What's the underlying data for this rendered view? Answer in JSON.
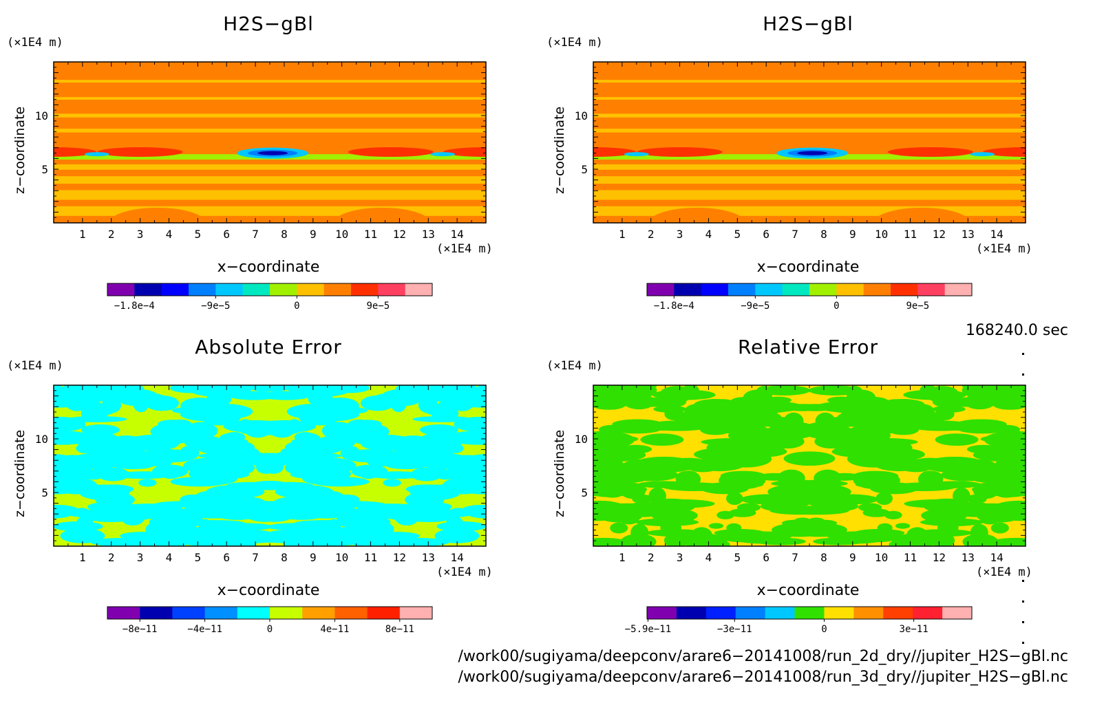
{
  "panels": [
    {
      "title": "H2S−gBl",
      "x_unit": "(×1E4 m)",
      "y_unit": "(×1E4 m)",
      "xlabel": "x−coordinate",
      "ylabel": "z−coordinate",
      "colorbar_labels": [
        "−1.8e−4",
        "−9e−5",
        "0",
        "9e−5"
      ]
    },
    {
      "title": "H2S−gBl",
      "x_unit": "(×1E4 m)",
      "y_unit": "(×1E4 m)",
      "xlabel": "x−coordinate",
      "ylabel": "z−coordinate",
      "colorbar_labels": [
        "−1.8e−4",
        "−9e−5",
        "0",
        "9e−5"
      ]
    },
    {
      "title": "Absolute Error",
      "x_unit": "(×1E4 m)",
      "y_unit": "(×1E4 m)",
      "xlabel": "x−coordinate",
      "ylabel": "z−coordinate",
      "colorbar_labels": [
        "−8e−11",
        "−4e−11",
        "0",
        "4e−11",
        "8e−11"
      ]
    },
    {
      "title": "Relative Error",
      "x_unit": "(×1E4 m)",
      "y_unit": "(×1E4 m)",
      "xlabel": "x−coordinate",
      "ylabel": "z−coordinate",
      "colorbar_labels": [
        "−5.9e−11",
        "−3e−11",
        "0",
        "3e−11"
      ]
    }
  ],
  "timestamp": "168240.0 sec",
  "footer": {
    "line1": "/work00/sugiyama/deepconv/arare6−20141008/run_2d_dry//jupiter_H2S−gBl.nc",
    "line2": "/work00/sugiyama/deepconv/arare6−20141008/run_3d_dry//jupiter_H2S−gBl.nc"
  },
  "chart_data": [
    {
      "type": "heatmap",
      "title": "H2S−gBl",
      "xlabel": "x−coordinate",
      "ylabel": "z−coordinate",
      "x_unit": "×1E4 m",
      "y_unit": "×1E4 m",
      "xlim": [
        0,
        15
      ],
      "ylim": [
        0,
        15
      ],
      "x_ticks": [
        1,
        2,
        3,
        4,
        5,
        6,
        7,
        8,
        9,
        10,
        11,
        12,
        13,
        14
      ],
      "y_ticks": [
        5,
        10
      ],
      "colorbar": {
        "tick_values": [
          -0.00018,
          -9e-05,
          0,
          9e-05
        ],
        "tick_labels": [
          "−1.8e−4",
          "−9e−5",
          "0",
          "9e−5"
        ],
        "colors": [
          "#8000b0",
          "#0000b0",
          "#0000ff",
          "#0080ff",
          "#00c8ff",
          "#00e8c0",
          "#a0f000",
          "#ffc000",
          "#ff8000",
          "#ff3000",
          "#ff4060",
          "#ffb0b0"
        ]
      },
      "features": [
        {
          "z": 6.5,
          "x": 7.6,
          "level": "minimum, about −2e−4"
        },
        {
          "z": 6.5,
          "x": 3.0,
          "level": "positive, about 6e−5"
        },
        {
          "z": 6.5,
          "x": 11.7,
          "level": "positive, about 6e−5"
        }
      ]
    },
    {
      "type": "heatmap",
      "title": "H2S−gBl",
      "xlabel": "x−coordinate",
      "ylabel": "z−coordinate",
      "x_unit": "×1E4 m",
      "y_unit": "×1E4 m",
      "xlim": [
        0,
        15
      ],
      "ylim": [
        0,
        15
      ],
      "x_ticks": [
        1,
        2,
        3,
        4,
        5,
        6,
        7,
        8,
        9,
        10,
        11,
        12,
        13,
        14
      ],
      "y_ticks": [
        5,
        10
      ],
      "colorbar": {
        "tick_values": [
          -0.00018,
          -9e-05,
          0,
          9e-05
        ],
        "tick_labels": [
          "−1.8e−4",
          "−9e−5",
          "0",
          "9e−5"
        ],
        "colors": [
          "#8000b0",
          "#0000b0",
          "#0000ff",
          "#0080ff",
          "#00c8ff",
          "#00e8c0",
          "#a0f000",
          "#ffc000",
          "#ff8000",
          "#ff3000",
          "#ff4060",
          "#ffb0b0"
        ]
      },
      "features": [
        {
          "z": 6.5,
          "x": 7.6,
          "level": "minimum, about −2e−4"
        },
        {
          "z": 6.5,
          "x": 3.0,
          "level": "positive, about 6e−5"
        },
        {
          "z": 6.5,
          "x": 11.7,
          "level": "positive, about 6e−5"
        }
      ]
    },
    {
      "type": "heatmap",
      "title": "Absolute Error",
      "xlabel": "x−coordinate",
      "ylabel": "z−coordinate",
      "x_unit": "×1E4 m",
      "y_unit": "×1E4 m",
      "xlim": [
        0,
        15
      ],
      "ylim": [
        0,
        15
      ],
      "x_ticks": [
        1,
        2,
        3,
        4,
        5,
        6,
        7,
        8,
        9,
        10,
        11,
        12,
        13,
        14
      ],
      "y_ticks": [
        5,
        10
      ],
      "colorbar": {
        "tick_values": [
          -8e-11,
          -4e-11,
          0,
          4e-11,
          8e-11
        ],
        "tick_labels": [
          "−8e−11",
          "−4e−11",
          "0",
          "4e−11",
          "8e−11"
        ],
        "colors": [
          "#8000b0",
          "#0000b0",
          "#0040ff",
          "#0090ff",
          "#00ffff",
          "#c8ff00",
          "#ffa000",
          "#ff6000",
          "#ff2000",
          "#ffb0b0"
        ]
      },
      "pattern": "interleaved patches of values between −2e−11 and 2e−11"
    },
    {
      "type": "heatmap",
      "title": "Relative Error",
      "xlabel": "x−coordinate",
      "ylabel": "z−coordinate",
      "x_unit": "×1E4 m",
      "y_unit": "×1E4 m",
      "xlim": [
        0,
        15
      ],
      "ylim": [
        0,
        15
      ],
      "x_ticks": [
        1,
        2,
        3,
        4,
        5,
        6,
        7,
        8,
        9,
        10,
        11,
        12,
        13,
        14
      ],
      "y_ticks": [
        5,
        10
      ],
      "colorbar": {
        "tick_values": [
          -5.9e-11,
          -3e-11,
          0,
          3e-11
        ],
        "tick_labels": [
          "−5.9e−11",
          "−3e−11",
          "0",
          "3e−11"
        ],
        "colors": [
          "#8000b0",
          "#0000b0",
          "#0020ff",
          "#0080ff",
          "#00c8ff",
          "#30e000",
          "#ffe000",
          "#ff9000",
          "#ff4000",
          "#ff2030",
          "#ffb0b0"
        ]
      },
      "pattern": "interleaved patches of values between −1e−11 and 1e−11"
    }
  ]
}
